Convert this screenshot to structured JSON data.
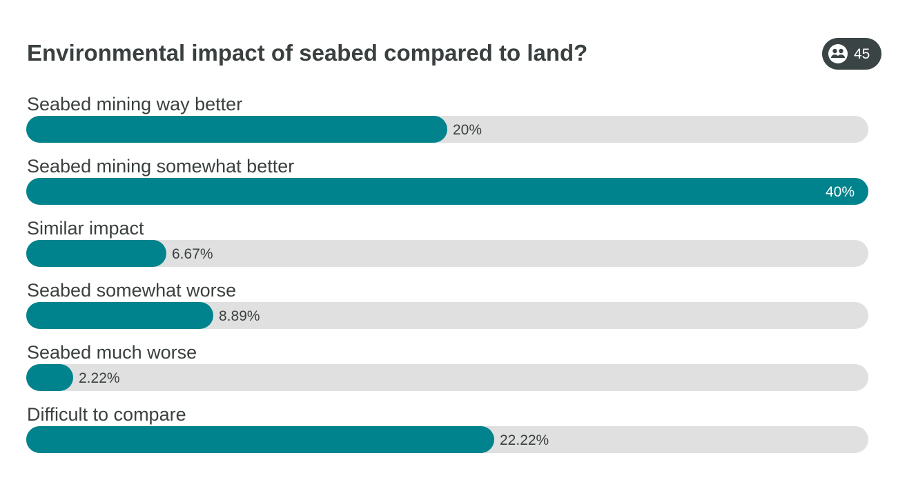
{
  "poll": {
    "title": "Environmental impact of seabed compared to land?",
    "participants": "45",
    "participants_icon": "people-icon"
  },
  "colors": {
    "bar": "#00838c",
    "track": "#e0e0e0",
    "text": "#3a3f3f",
    "badge": "#3a4444"
  },
  "chart_data": {
    "type": "bar",
    "orientation": "horizontal",
    "title": "Environmental impact of seabed compared to land?",
    "categories": [
      "Seabed mining way better",
      "Seabed mining somewhat better",
      "Similar impact",
      "Seabed somewhat worse",
      "Seabed much worse",
      "Difficult to compare"
    ],
    "values": [
      20,
      40,
      6.67,
      8.89,
      2.22,
      22.22
    ],
    "value_labels": [
      "20%",
      "40%",
      "6.67%",
      "8.89%",
      "2.22%",
      "22.22%"
    ],
    "unit": "%",
    "xlim": [
      0,
      40
    ],
    "grid": false
  }
}
